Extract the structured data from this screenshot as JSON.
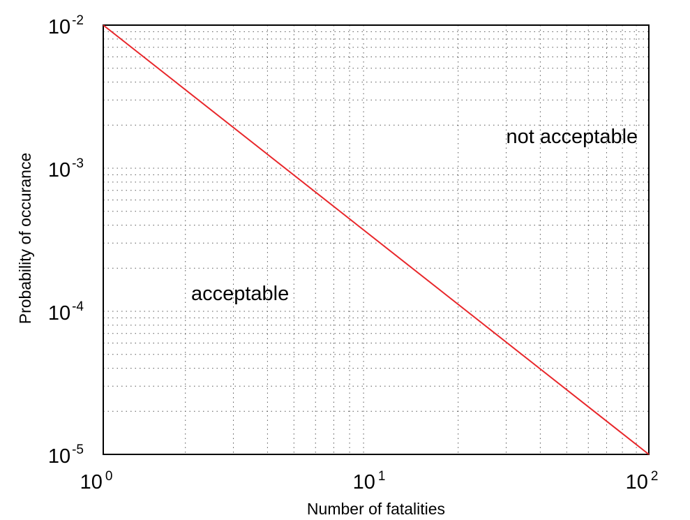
{
  "chart_data": {
    "type": "line",
    "xlabel": "Number of fatalities",
    "ylabel": "Probability of occurance",
    "x_scale": "log",
    "y_scale": "log",
    "xlim": [
      1,
      100
    ],
    "ylim": [
      1e-05,
      0.01
    ],
    "grid": true,
    "x_ticks": [
      {
        "base": "10",
        "exp": "0",
        "value": 1
      },
      {
        "base": "10",
        "exp": "1",
        "value": 10
      },
      {
        "base": "10",
        "exp": "2",
        "value": 100
      }
    ],
    "y_ticks": [
      {
        "base": "10",
        "exp": "-2",
        "value": 0.01
      },
      {
        "base": "10",
        "exp": "-3",
        "value": 0.001
      },
      {
        "base": "10",
        "exp": "-4",
        "value": 0.0001
      },
      {
        "base": "10",
        "exp": "-5",
        "value": 1e-05
      }
    ],
    "series": [
      {
        "color": "#e8262a",
        "x": [
          1,
          100
        ],
        "y": [
          0.01,
          1e-05
        ]
      }
    ],
    "annotations": [
      {
        "text": "not acceptable",
        "x": 30,
        "y": 0.0015
      },
      {
        "text": "acceptable",
        "x": 2.1,
        "y": 0.00012
      }
    ]
  }
}
